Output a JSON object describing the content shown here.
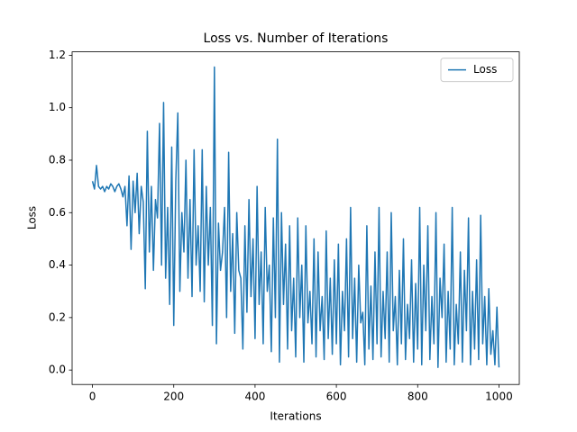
{
  "chart_data": {
    "type": "line",
    "title": "Loss vs. Number of Iterations",
    "xlabel": "Iterations",
    "ylabel": "Loss",
    "legend": "upper right",
    "xlim": [
      -50,
      1050
    ],
    "ylim": [
      -0.055,
      1.213
    ],
    "xticks": [
      0,
      200,
      400,
      600,
      800,
      1000
    ],
    "yticks": [
      {
        "value": 0,
        "label": "0.0"
      },
      0.2,
      0.4,
      0.6,
      0.8,
      {
        "value": 1,
        "label": "1.0"
      },
      1.2
    ],
    "x": [
      0,
      5,
      10,
      15,
      20,
      25,
      30,
      35,
      40,
      45,
      50,
      55,
      60,
      65,
      70,
      75,
      80,
      85,
      90,
      95,
      100,
      105,
      110,
      115,
      120,
      125,
      130,
      135,
      140,
      145,
      150,
      155,
      160,
      165,
      170,
      175,
      180,
      185,
      190,
      195,
      200,
      205,
      210,
      215,
      220,
      225,
      230,
      235,
      240,
      245,
      250,
      255,
      260,
      265,
      270,
      275,
      280,
      285,
      290,
      295,
      300,
      305,
      310,
      315,
      320,
      325,
      330,
      335,
      340,
      345,
      350,
      355,
      360,
      365,
      370,
      375,
      380,
      385,
      390,
      395,
      400,
      405,
      410,
      415,
      420,
      425,
      430,
      435,
      440,
      445,
      450,
      455,
      460,
      465,
      470,
      475,
      480,
      485,
      490,
      495,
      500,
      505,
      510,
      515,
      520,
      525,
      530,
      535,
      540,
      545,
      550,
      555,
      560,
      565,
      570,
      575,
      580,
      585,
      590,
      595,
      600,
      605,
      610,
      615,
      620,
      625,
      630,
      635,
      640,
      645,
      650,
      655,
      660,
      665,
      670,
      675,
      680,
      685,
      690,
      695,
      700,
      705,
      710,
      715,
      720,
      725,
      730,
      735,
      740,
      745,
      750,
      755,
      760,
      765,
      770,
      775,
      780,
      785,
      790,
      795,
      800,
      805,
      810,
      815,
      820,
      825,
      830,
      835,
      840,
      845,
      850,
      855,
      860,
      865,
      870,
      875,
      880,
      885,
      890,
      895,
      900,
      905,
      910,
      915,
      920,
      925,
      930,
      935,
      940,
      945,
      950,
      955,
      960,
      965,
      970,
      975,
      980,
      985,
      990,
      995,
      1000
    ],
    "series": [
      {
        "name": "Loss",
        "color": "#1f77b4",
        "values": [
          0.72,
          0.69,
          0.78,
          0.7,
          0.69,
          0.7,
          0.68,
          0.7,
          0.69,
          0.71,
          0.7,
          0.68,
          0.7,
          0.71,
          0.69,
          0.66,
          0.7,
          0.55,
          0.74,
          0.46,
          0.72,
          0.6,
          0.75,
          0.52,
          0.7,
          0.64,
          0.31,
          0.91,
          0.45,
          0.7,
          0.38,
          0.65,
          0.58,
          0.94,
          0.4,
          1.02,
          0.35,
          0.62,
          0.25,
          0.85,
          0.17,
          0.72,
          0.98,
          0.3,
          0.6,
          0.45,
          0.8,
          0.35,
          0.65,
          0.28,
          0.84,
          0.4,
          0.55,
          0.3,
          0.84,
          0.26,
          0.7,
          0.4,
          0.62,
          0.17,
          1.155,
          0.1,
          0.56,
          0.38,
          0.45,
          0.62,
          0.2,
          0.83,
          0.3,
          0.52,
          0.14,
          0.6,
          0.38,
          0.35,
          0.08,
          0.55,
          0.22,
          0.65,
          0.28,
          0.5,
          0.12,
          0.7,
          0.25,
          0.45,
          0.1,
          0.62,
          0.3,
          0.4,
          0.07,
          0.58,
          0.2,
          0.88,
          0.03,
          0.6,
          0.25,
          0.48,
          0.08,
          0.55,
          0.15,
          0.35,
          0.05,
          0.58,
          0.2,
          0.4,
          0.03,
          0.55,
          0.18,
          0.3,
          0.1,
          0.5,
          0.05,
          0.45,
          0.15,
          0.28,
          0.04,
          0.53,
          0.12,
          0.35,
          0.06,
          0.42,
          0.1,
          0.48,
          0.02,
          0.3,
          0.15,
          0.5,
          0.05,
          0.62,
          0.12,
          0.35,
          0.03,
          0.4,
          0.18,
          0.22,
          0.02,
          0.55,
          0.08,
          0.32,
          0.04,
          0.45,
          0.1,
          0.62,
          0.05,
          0.3,
          0.12,
          0.45,
          0.03,
          0.6,
          0.15,
          0.28,
          0.02,
          0.38,
          0.1,
          0.5,
          0.04,
          0.25,
          0.12,
          0.42,
          0.03,
          0.33,
          0.08,
          0.62,
          0.02,
          0.4,
          0.15,
          0.55,
          0.04,
          0.28,
          0.1,
          0.6,
          0.01,
          0.35,
          0.2,
          0.48,
          0.03,
          0.3,
          0.08,
          0.62,
          0.02,
          0.25,
          0.1,
          0.45,
          0.03,
          0.38,
          0.15,
          0.58,
          0.02,
          0.3,
          0.08,
          0.42,
          0.04,
          0.59,
          0.1,
          0.28,
          0.02,
          0.31,
          0.06,
          0.15,
          0.02,
          0.24,
          0.01
        ]
      }
    ]
  }
}
